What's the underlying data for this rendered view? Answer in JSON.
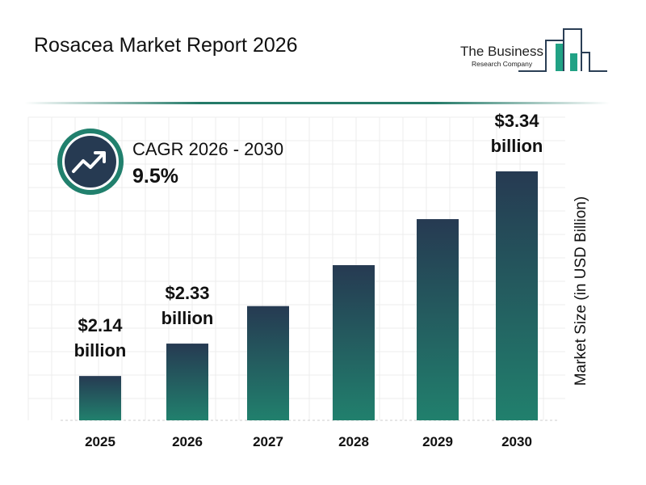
{
  "title": "Rosacea Market Report 2026",
  "logo": {
    "line1": "The Business",
    "line2": "Research Company"
  },
  "cagr": {
    "label": "CAGR 2026 - 2030",
    "value": "9.5%",
    "icon": "trending-up-icon"
  },
  "colors": {
    "bar_top": "#263a52",
    "bar_bottom": "#21806d",
    "accent": "#247a68",
    "icon_bg": "#263a52"
  },
  "chart_data": {
    "type": "bar",
    "title": "Rosacea Market Report 2026",
    "ylabel": "Market Size (in USD Billion)",
    "xlabel": "",
    "categories": [
      "2025",
      "2026",
      "2027",
      "2028",
      "2029",
      "2030"
    ],
    "values": [
      2.14,
      2.33,
      2.55,
      2.79,
      3.06,
      3.34
    ],
    "data_labels": [
      {
        "index": 0,
        "line1": "$2.14",
        "line2": "billion"
      },
      {
        "index": 1,
        "line1": "$2.33",
        "line2": "billion"
      },
      {
        "index": 5,
        "line1": "$3.34",
        "line2": "billion"
      }
    ],
    "grid": true,
    "ylim": [
      1.88,
      3.4
    ]
  }
}
